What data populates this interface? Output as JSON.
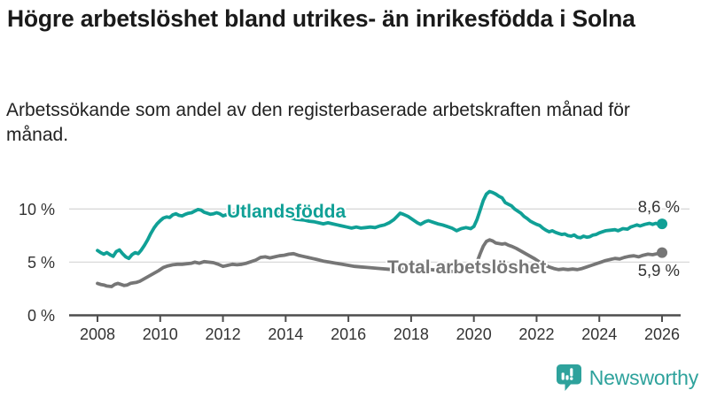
{
  "header": {
    "title": "Högre arbetslöshet bland utrikes- än inrikesfödda i Solna",
    "subtitle": "Arbetssökande som andel av den registerbaserade arbetskraften månad för månad."
  },
  "chart_data": {
    "type": "line",
    "title": "Högre arbetslöshet bland utrikes- än inrikesfödda i Solna",
    "subtitle": "Arbetssökande som andel av den registerbaserade arbetskraften månad för månad.",
    "unit": "%",
    "grid": "horizontal",
    "x_axis": {
      "ticks": [
        2008,
        2010,
        2012,
        2014,
        2016,
        2018,
        2020,
        2022,
        2024,
        2026
      ],
      "range": [
        2008,
        2026
      ]
    },
    "y_axis": {
      "tick_values": [
        0,
        5,
        10
      ],
      "tick_labels": [
        "0 %",
        "5 %",
        "10 %"
      ],
      "range": [
        0,
        12.2
      ]
    },
    "series": [
      {
        "name": "Utlandsfödda",
        "color": "#10a096",
        "end_label": "8,6 %",
        "end_value": 8.6,
        "points": [
          [
            2008.0,
            6.1
          ],
          [
            2008.1,
            5.9
          ],
          [
            2008.2,
            5.75
          ],
          [
            2008.3,
            5.9
          ],
          [
            2008.4,
            5.7
          ],
          [
            2008.5,
            5.55
          ],
          [
            2008.6,
            6.0
          ],
          [
            2008.7,
            6.15
          ],
          [
            2008.8,
            5.8
          ],
          [
            2008.9,
            5.5
          ],
          [
            2009.0,
            5.35
          ],
          [
            2009.1,
            5.7
          ],
          [
            2009.2,
            5.9
          ],
          [
            2009.3,
            5.8
          ],
          [
            2009.4,
            6.15
          ],
          [
            2009.5,
            6.6
          ],
          [
            2009.6,
            7.1
          ],
          [
            2009.7,
            7.7
          ],
          [
            2009.8,
            8.2
          ],
          [
            2009.9,
            8.6
          ],
          [
            2010.0,
            8.9
          ],
          [
            2010.1,
            9.15
          ],
          [
            2010.2,
            9.25
          ],
          [
            2010.3,
            9.2
          ],
          [
            2010.4,
            9.45
          ],
          [
            2010.5,
            9.55
          ],
          [
            2010.6,
            9.4
          ],
          [
            2010.7,
            9.35
          ],
          [
            2010.8,
            9.5
          ],
          [
            2010.9,
            9.6
          ],
          [
            2011.0,
            9.65
          ],
          [
            2011.1,
            9.8
          ],
          [
            2011.2,
            9.95
          ],
          [
            2011.3,
            9.9
          ],
          [
            2011.4,
            9.7
          ],
          [
            2011.5,
            9.6
          ],
          [
            2011.6,
            9.5
          ],
          [
            2011.7,
            9.55
          ],
          [
            2011.8,
            9.65
          ],
          [
            2011.9,
            9.55
          ],
          [
            2012.0,
            9.35
          ],
          [
            2012.1,
            9.45
          ],
          [
            2012.2,
            9.6
          ],
          [
            2012.3,
            9.5
          ],
          [
            2012.4,
            9.6
          ],
          [
            2012.5,
            9.7
          ],
          [
            2012.6,
            9.75
          ],
          [
            2012.7,
            9.85
          ],
          [
            2012.8,
            9.95
          ],
          [
            2012.9,
            9.9
          ],
          [
            2013.0,
            10.0
          ],
          [
            2013.1,
            9.95
          ],
          [
            2013.25,
            9.85
          ],
          [
            2013.4,
            9.75
          ],
          [
            2013.55,
            9.7
          ],
          [
            2013.7,
            9.6
          ],
          [
            2013.85,
            9.5
          ],
          [
            2014.0,
            9.35
          ],
          [
            2014.15,
            9.2
          ],
          [
            2014.3,
            9.05
          ],
          [
            2014.45,
            9.0
          ],
          [
            2014.6,
            8.95
          ],
          [
            2014.75,
            8.85
          ],
          [
            2014.9,
            8.8
          ],
          [
            2015.05,
            8.7
          ],
          [
            2015.2,
            8.6
          ],
          [
            2015.35,
            8.7
          ],
          [
            2015.5,
            8.6
          ],
          [
            2015.65,
            8.5
          ],
          [
            2015.8,
            8.4
          ],
          [
            2015.95,
            8.3
          ],
          [
            2016.1,
            8.2
          ],
          [
            2016.25,
            8.3
          ],
          [
            2016.4,
            8.2
          ],
          [
            2016.55,
            8.25
          ],
          [
            2016.7,
            8.3
          ],
          [
            2016.85,
            8.25
          ],
          [
            2017.0,
            8.4
          ],
          [
            2017.15,
            8.5
          ],
          [
            2017.3,
            8.7
          ],
          [
            2017.45,
            9.0
          ],
          [
            2017.55,
            9.3
          ],
          [
            2017.65,
            9.6
          ],
          [
            2017.75,
            9.5
          ],
          [
            2017.9,
            9.3
          ],
          [
            2018.05,
            9.0
          ],
          [
            2018.2,
            8.7
          ],
          [
            2018.3,
            8.55
          ],
          [
            2018.45,
            8.8
          ],
          [
            2018.55,
            8.9
          ],
          [
            2018.7,
            8.75
          ],
          [
            2018.85,
            8.6
          ],
          [
            2019.0,
            8.5
          ],
          [
            2019.15,
            8.35
          ],
          [
            2019.3,
            8.2
          ],
          [
            2019.45,
            7.95
          ],
          [
            2019.6,
            8.15
          ],
          [
            2019.75,
            8.25
          ],
          [
            2019.9,
            8.15
          ],
          [
            2020.0,
            8.35
          ],
          [
            2020.1,
            9.0
          ],
          [
            2020.2,
            9.9
          ],
          [
            2020.3,
            10.8
          ],
          [
            2020.4,
            11.4
          ],
          [
            2020.5,
            11.65
          ],
          [
            2020.6,
            11.55
          ],
          [
            2020.7,
            11.4
          ],
          [
            2020.8,
            11.2
          ],
          [
            2020.9,
            11.05
          ],
          [
            2021.0,
            10.6
          ],
          [
            2021.1,
            10.45
          ],
          [
            2021.2,
            10.3
          ],
          [
            2021.3,
            10.0
          ],
          [
            2021.4,
            9.8
          ],
          [
            2021.5,
            9.6
          ],
          [
            2021.6,
            9.3
          ],
          [
            2021.7,
            9.1
          ],
          [
            2021.8,
            8.85
          ],
          [
            2021.9,
            8.7
          ],
          [
            2022.0,
            8.55
          ],
          [
            2022.1,
            8.45
          ],
          [
            2022.2,
            8.2
          ],
          [
            2022.3,
            8.0
          ],
          [
            2022.4,
            7.85
          ],
          [
            2022.5,
            7.95
          ],
          [
            2022.6,
            7.8
          ],
          [
            2022.7,
            7.7
          ],
          [
            2022.8,
            7.6
          ],
          [
            2022.9,
            7.65
          ],
          [
            2023.0,
            7.5
          ],
          [
            2023.1,
            7.45
          ],
          [
            2023.2,
            7.55
          ],
          [
            2023.3,
            7.35
          ],
          [
            2023.4,
            7.3
          ],
          [
            2023.5,
            7.45
          ],
          [
            2023.6,
            7.35
          ],
          [
            2023.7,
            7.4
          ],
          [
            2023.8,
            7.55
          ],
          [
            2023.9,
            7.6
          ],
          [
            2024.0,
            7.75
          ],
          [
            2024.1,
            7.85
          ],
          [
            2024.2,
            7.95
          ],
          [
            2024.35,
            8.0
          ],
          [
            2024.5,
            8.05
          ],
          [
            2024.6,
            7.95
          ],
          [
            2024.75,
            8.15
          ],
          [
            2024.9,
            8.1
          ],
          [
            2025.0,
            8.3
          ],
          [
            2025.1,
            8.4
          ],
          [
            2025.2,
            8.5
          ],
          [
            2025.3,
            8.4
          ],
          [
            2025.45,
            8.55
          ],
          [
            2025.6,
            8.65
          ],
          [
            2025.7,
            8.55
          ],
          [
            2025.8,
            8.65
          ],
          [
            2025.9,
            8.55
          ],
          [
            2026.0,
            8.6
          ]
        ]
      },
      {
        "name": "Total arbetslöshet",
        "color": "#767676",
        "end_label": "5,9 %",
        "end_value": 5.9,
        "points": [
          [
            2008.0,
            3.0
          ],
          [
            2008.1,
            2.9
          ],
          [
            2008.2,
            2.85
          ],
          [
            2008.3,
            2.75
          ],
          [
            2008.45,
            2.7
          ],
          [
            2008.55,
            2.9
          ],
          [
            2008.65,
            3.0
          ],
          [
            2008.75,
            2.9
          ],
          [
            2008.85,
            2.8
          ],
          [
            2008.95,
            2.85
          ],
          [
            2009.05,
            3.0
          ],
          [
            2009.15,
            3.05
          ],
          [
            2009.25,
            3.1
          ],
          [
            2009.35,
            3.2
          ],
          [
            2009.5,
            3.45
          ],
          [
            2009.65,
            3.7
          ],
          [
            2009.8,
            3.95
          ],
          [
            2009.95,
            4.2
          ],
          [
            2010.1,
            4.5
          ],
          [
            2010.25,
            4.65
          ],
          [
            2010.4,
            4.75
          ],
          [
            2010.55,
            4.8
          ],
          [
            2010.7,
            4.8
          ],
          [
            2010.85,
            4.85
          ],
          [
            2011.0,
            4.9
          ],
          [
            2011.1,
            5.0
          ],
          [
            2011.25,
            4.9
          ],
          [
            2011.4,
            5.05
          ],
          [
            2011.55,
            5.0
          ],
          [
            2011.7,
            4.95
          ],
          [
            2011.85,
            4.8
          ],
          [
            2012.0,
            4.6
          ],
          [
            2012.15,
            4.7
          ],
          [
            2012.3,
            4.8
          ],
          [
            2012.45,
            4.75
          ],
          [
            2012.6,
            4.8
          ],
          [
            2012.75,
            4.9
          ],
          [
            2012.9,
            5.05
          ],
          [
            2013.05,
            5.2
          ],
          [
            2013.2,
            5.45
          ],
          [
            2013.35,
            5.5
          ],
          [
            2013.5,
            5.4
          ],
          [
            2013.65,
            5.5
          ],
          [
            2013.8,
            5.6
          ],
          [
            2013.95,
            5.65
          ],
          [
            2014.1,
            5.75
          ],
          [
            2014.25,
            5.8
          ],
          [
            2014.4,
            5.65
          ],
          [
            2014.55,
            5.55
          ],
          [
            2014.7,
            5.45
          ],
          [
            2014.85,
            5.35
          ],
          [
            2015.0,
            5.25
          ],
          [
            2015.2,
            5.1
          ],
          [
            2015.4,
            5.0
          ],
          [
            2015.6,
            4.9
          ],
          [
            2015.8,
            4.8
          ],
          [
            2016.0,
            4.7
          ],
          [
            2016.2,
            4.6
          ],
          [
            2016.4,
            4.55
          ],
          [
            2016.6,
            4.5
          ],
          [
            2016.8,
            4.45
          ],
          [
            2017.0,
            4.4
          ],
          [
            2017.2,
            4.35
          ],
          [
            2017.4,
            4.3
          ],
          [
            2017.6,
            4.4
          ],
          [
            2017.8,
            4.3
          ],
          [
            2018.0,
            4.25
          ],
          [
            2018.2,
            4.3
          ],
          [
            2018.4,
            4.35
          ],
          [
            2018.6,
            4.3
          ],
          [
            2018.8,
            4.25
          ],
          [
            2019.0,
            4.2
          ],
          [
            2019.2,
            4.15
          ],
          [
            2019.4,
            4.1
          ],
          [
            2019.55,
            4.1
          ],
          [
            2019.7,
            4.2
          ],
          [
            2019.85,
            4.3
          ],
          [
            2020.0,
            4.45
          ],
          [
            2020.1,
            5.0
          ],
          [
            2020.2,
            5.8
          ],
          [
            2020.3,
            6.5
          ],
          [
            2020.4,
            6.95
          ],
          [
            2020.5,
            7.1
          ],
          [
            2020.6,
            7.0
          ],
          [
            2020.7,
            6.8
          ],
          [
            2020.8,
            6.75
          ],
          [
            2020.9,
            6.7
          ],
          [
            2021.0,
            6.75
          ],
          [
            2021.1,
            6.6
          ],
          [
            2021.2,
            6.5
          ],
          [
            2021.35,
            6.3
          ],
          [
            2021.5,
            6.05
          ],
          [
            2021.65,
            5.8
          ],
          [
            2021.8,
            5.55
          ],
          [
            2021.95,
            5.3
          ],
          [
            2022.1,
            5.0
          ],
          [
            2022.25,
            4.75
          ],
          [
            2022.4,
            4.55
          ],
          [
            2022.55,
            4.4
          ],
          [
            2022.7,
            4.3
          ],
          [
            2022.85,
            4.35
          ],
          [
            2023.0,
            4.3
          ],
          [
            2023.15,
            4.35
          ],
          [
            2023.3,
            4.3
          ],
          [
            2023.45,
            4.4
          ],
          [
            2023.6,
            4.55
          ],
          [
            2023.75,
            4.7
          ],
          [
            2023.9,
            4.85
          ],
          [
            2024.05,
            5.0
          ],
          [
            2024.2,
            5.15
          ],
          [
            2024.35,
            5.25
          ],
          [
            2024.5,
            5.35
          ],
          [
            2024.65,
            5.3
          ],
          [
            2024.8,
            5.45
          ],
          [
            2024.95,
            5.55
          ],
          [
            2025.1,
            5.6
          ],
          [
            2025.25,
            5.5
          ],
          [
            2025.4,
            5.65
          ],
          [
            2025.55,
            5.75
          ],
          [
            2025.7,
            5.7
          ],
          [
            2025.85,
            5.8
          ],
          [
            2026.0,
            5.9
          ]
        ]
      }
    ]
  },
  "footer": {
    "brand": "Newsworthy",
    "brand_color": "#2ea29c",
    "logo_icon": "bar-chart-speech-bubble-icon"
  }
}
